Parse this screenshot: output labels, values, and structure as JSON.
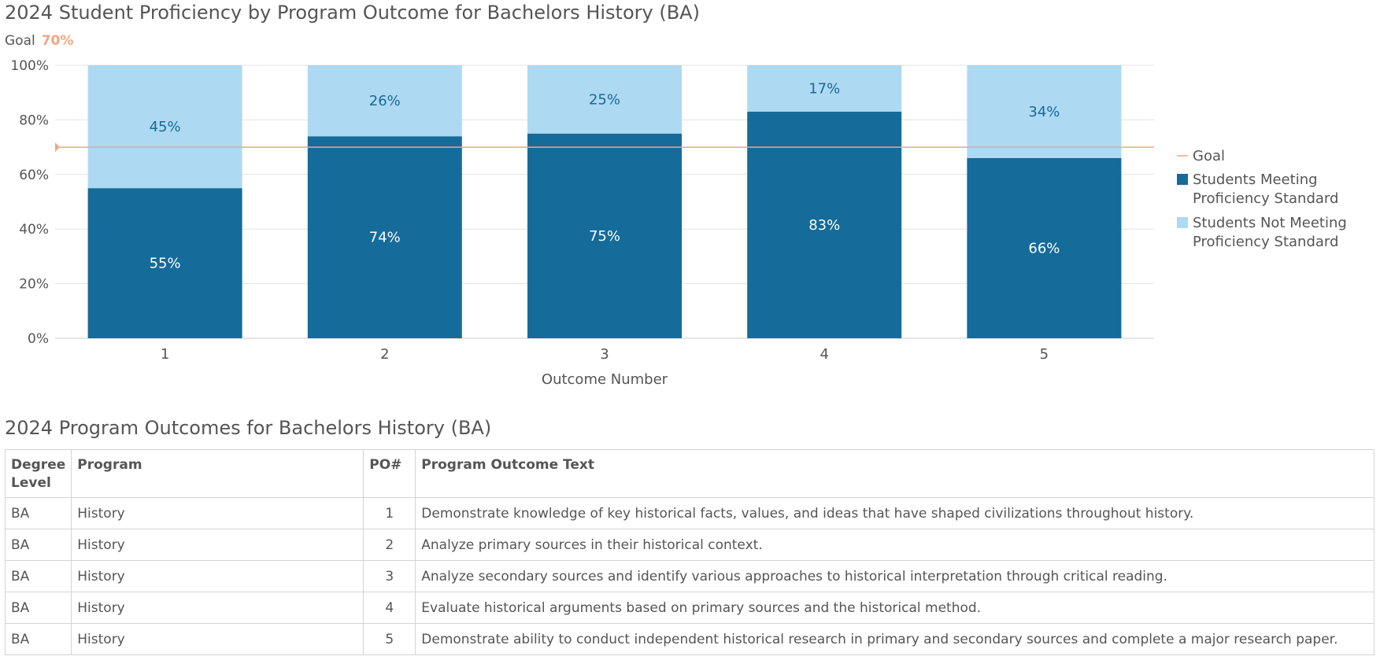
{
  "chart_title": "2024 Student Proficiency by Program Outcome for Bachelors History (BA)",
  "goal_label": "Goal",
  "goal_value": "70%",
  "colors": {
    "meeting": "#156b99",
    "not_meeting": "#add9f2",
    "goal": "#f4a582",
    "grid": "#e3e3e3",
    "text": "#555555"
  },
  "chart_data": {
    "type": "bar",
    "stacked": true,
    "title": "2024 Student Proficiency by Program Outcome for Bachelors History (BA)",
    "xlabel": "Outcome Number",
    "ylabel": "",
    "ylim": [
      0,
      100
    ],
    "y_ticks": [
      "0%",
      "20%",
      "40%",
      "60%",
      "80%",
      "100%"
    ],
    "categories": [
      "1",
      "2",
      "3",
      "4",
      "5"
    ],
    "series": [
      {
        "name": "Students Meeting Proficiency Standard",
        "values": [
          55,
          74,
          75,
          83,
          66
        ],
        "labels": [
          "55%",
          "74%",
          "75%",
          "83%",
          "66%"
        ]
      },
      {
        "name": "Students Not Meeting Proficiency Standard",
        "values": [
          45,
          26,
          25,
          17,
          34
        ],
        "labels": [
          "45%",
          "26%",
          "25%",
          "17%",
          "34%"
        ]
      }
    ],
    "goal": 70,
    "legend": [
      "Goal",
      "Students Meeting Proficiency Standard",
      "Students Not Meeting Proficiency Standard"
    ],
    "legend_lines": [
      [
        "Goal"
      ],
      [
        "Students Meeting",
        "Proficiency Standard"
      ],
      [
        "Students Not Meeting",
        "Proficiency Standard"
      ]
    ],
    "legend_position": "right",
    "grid": true
  },
  "table": {
    "title": "2024 Program Outcomes for Bachelors History (BA)",
    "headers": {
      "degree_line1": "Degree",
      "degree_line2": "Level",
      "program": "Program",
      "po": "PO#",
      "text": "Program Outcome Text"
    },
    "rows": [
      {
        "degree": "BA",
        "program": "History",
        "po": "1",
        "text": "Demonstrate knowledge of key historical facts, values, and ideas that have shaped civilizations throughout history."
      },
      {
        "degree": "BA",
        "program": "History",
        "po": "2",
        "text": "Analyze primary sources in their historical context."
      },
      {
        "degree": "BA",
        "program": "History",
        "po": "3",
        "text": "Analyze secondary sources and identify various approaches to historical interpretation through critical reading."
      },
      {
        "degree": "BA",
        "program": "History",
        "po": "4",
        "text": "Evaluate historical arguments based on primary sources and the historical method."
      },
      {
        "degree": "BA",
        "program": "History",
        "po": "5",
        "text": "Demonstrate ability to conduct independent historical research in primary and secondary sources and complete a major research paper."
      }
    ]
  }
}
